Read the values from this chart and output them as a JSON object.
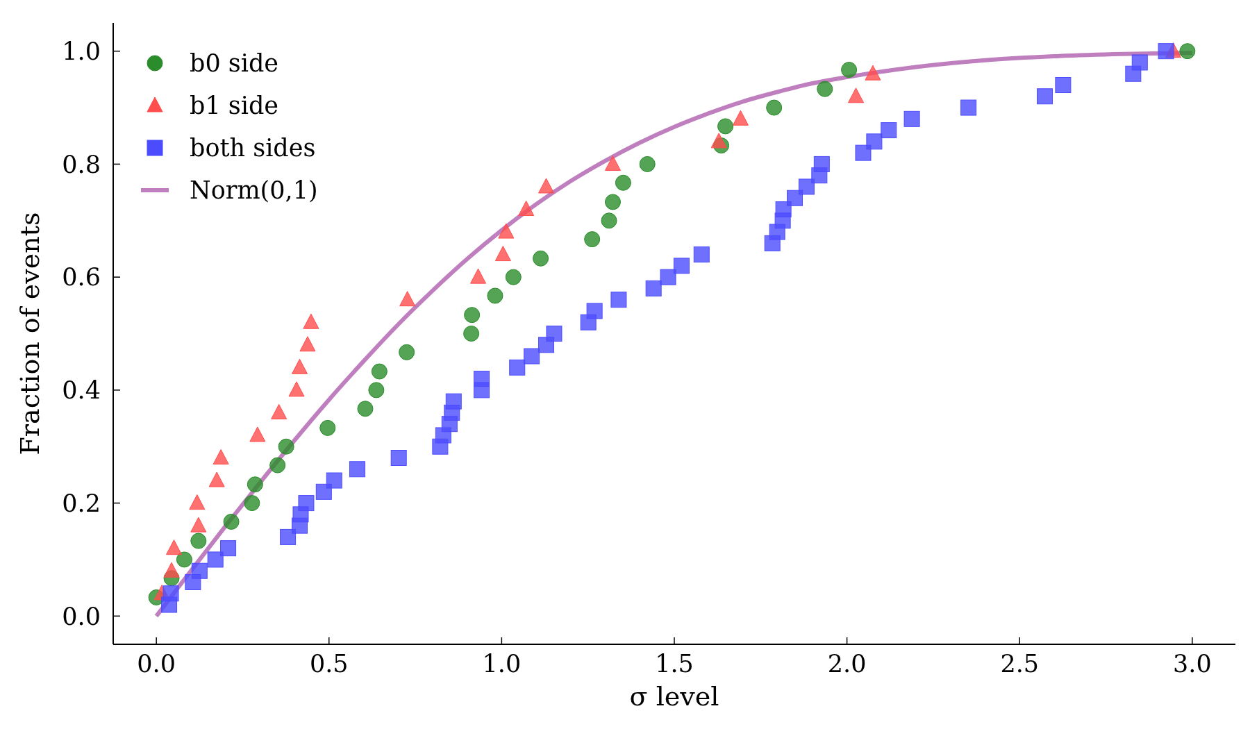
{
  "chart_data": {
    "type": "scatter",
    "xlabel": "σ level",
    "ylabel": "Fraction of events",
    "xlim": [
      -0.125,
      3.125
    ],
    "ylim": [
      -0.05,
      1.05
    ],
    "xticks": [
      {
        "value": 0,
        "label": "0.0"
      },
      {
        "value": 0.5,
        "label": "0.5"
      },
      {
        "value": 1,
        "label": "1.0"
      },
      {
        "value": 1.5,
        "label": "1.5"
      },
      {
        "value": 2,
        "label": "2.0"
      },
      {
        "value": 2.5,
        "label": "2.5"
      },
      {
        "value": 3,
        "label": "3.0"
      }
    ],
    "yticks": [
      {
        "value": 0,
        "label": "0.0"
      },
      {
        "value": 0.2,
        "label": "0.2"
      },
      {
        "value": 0.4,
        "label": "0.4"
      },
      {
        "value": 0.6,
        "label": "0.6"
      },
      {
        "value": 0.8,
        "label": "0.8"
      },
      {
        "value": 1,
        "label": "1.0"
      }
    ],
    "grid": false,
    "legend": "top left",
    "series": [
      {
        "name": "b0 side",
        "marker": "circle",
        "color": "#2a8c2a",
        "x": [
          0.0,
          0.044,
          0.081,
          0.122,
          0.217,
          0.277,
          0.286,
          0.351,
          0.376,
          0.496,
          0.605,
          0.637,
          0.646,
          0.725,
          0.912,
          0.914,
          0.981,
          1.034,
          1.113,
          1.262,
          1.311,
          1.322,
          1.352,
          1.422,
          1.636,
          1.648,
          1.789,
          1.936,
          2.006,
          2.986
        ],
        "values": [
          0.033,
          0.067,
          0.1,
          0.133,
          0.167,
          0.2,
          0.233,
          0.267,
          0.3,
          0.333,
          0.367,
          0.4,
          0.433,
          0.467,
          0.5,
          0.533,
          0.567,
          0.6,
          0.633,
          0.667,
          0.7,
          0.733,
          0.767,
          0.8,
          0.833,
          0.867,
          0.9,
          0.933,
          0.967,
          1.0
        ]
      },
      {
        "name": "b1 side",
        "marker": "triangle",
        "color": "#ff4c4c",
        "x": [
          0.016,
          0.044,
          0.051,
          0.122,
          0.118,
          0.175,
          0.187,
          0.293,
          0.355,
          0.406,
          0.415,
          0.438,
          0.448,
          0.727,
          0.932,
          1.004,
          1.013,
          1.071,
          1.129,
          1.322,
          1.629,
          1.692,
          2.026,
          2.075,
          2.945
        ],
        "values": [
          0.04,
          0.08,
          0.12,
          0.16,
          0.2,
          0.24,
          0.28,
          0.32,
          0.36,
          0.4,
          0.44,
          0.48,
          0.52,
          0.56,
          0.6,
          0.64,
          0.68,
          0.72,
          0.76,
          0.8,
          0.84,
          0.88,
          0.92,
          0.96,
          1.0
        ]
      },
      {
        "name": "both sides",
        "marker": "square",
        "color": "#4c4cff",
        "x": [
          0.037,
          0.042,
          0.106,
          0.125,
          0.171,
          0.208,
          0.381,
          0.415,
          0.418,
          0.434,
          0.485,
          0.515,
          0.582,
          0.702,
          0.822,
          0.831,
          0.849,
          0.856,
          0.861,
          0.942,
          0.942,
          1.045,
          1.087,
          1.129,
          1.152,
          1.251,
          1.269,
          1.339,
          1.44,
          1.482,
          1.521,
          1.579,
          1.784,
          1.798,
          1.814,
          1.816,
          1.849,
          1.883,
          1.92,
          1.927,
          2.047,
          2.079,
          2.121,
          2.188,
          2.352,
          2.573,
          2.626,
          2.829,
          2.848,
          2.924
        ],
        "values": [
          0.02,
          0.04,
          0.06,
          0.08,
          0.1,
          0.12,
          0.14,
          0.16,
          0.18,
          0.2,
          0.22,
          0.24,
          0.26,
          0.28,
          0.3,
          0.32,
          0.34,
          0.36,
          0.38,
          0.4,
          0.42,
          0.44,
          0.46,
          0.48,
          0.5,
          0.52,
          0.54,
          0.56,
          0.58,
          0.6,
          0.62,
          0.64,
          0.66,
          0.68,
          0.7,
          0.72,
          0.74,
          0.76,
          0.78,
          0.8,
          0.82,
          0.84,
          0.86,
          0.88,
          0.9,
          0.92,
          0.94,
          0.96,
          0.98,
          1.0
        ]
      },
      {
        "name": "Norm(0,1)",
        "type": "line",
        "marker": "none",
        "color": "#bf7fbf",
        "x": [
          0,
          0.1,
          0.2,
          0.3,
          0.4,
          0.5,
          0.6,
          0.7,
          0.8,
          0.9,
          1.0,
          1.1,
          1.2,
          1.3,
          1.4,
          1.5,
          1.6,
          1.7,
          1.8,
          1.9,
          2.0,
          2.2,
          2.4,
          2.6,
          2.8,
          3.0
        ],
        "values": [
          0,
          0.08,
          0.159,
          0.236,
          0.311,
          0.383,
          0.451,
          0.516,
          0.576,
          0.632,
          0.683,
          0.729,
          0.77,
          0.806,
          0.838,
          0.866,
          0.89,
          0.911,
          0.928,
          0.943,
          0.954,
          0.972,
          0.984,
          0.991,
          0.995,
          0.997
        ]
      }
    ]
  }
}
